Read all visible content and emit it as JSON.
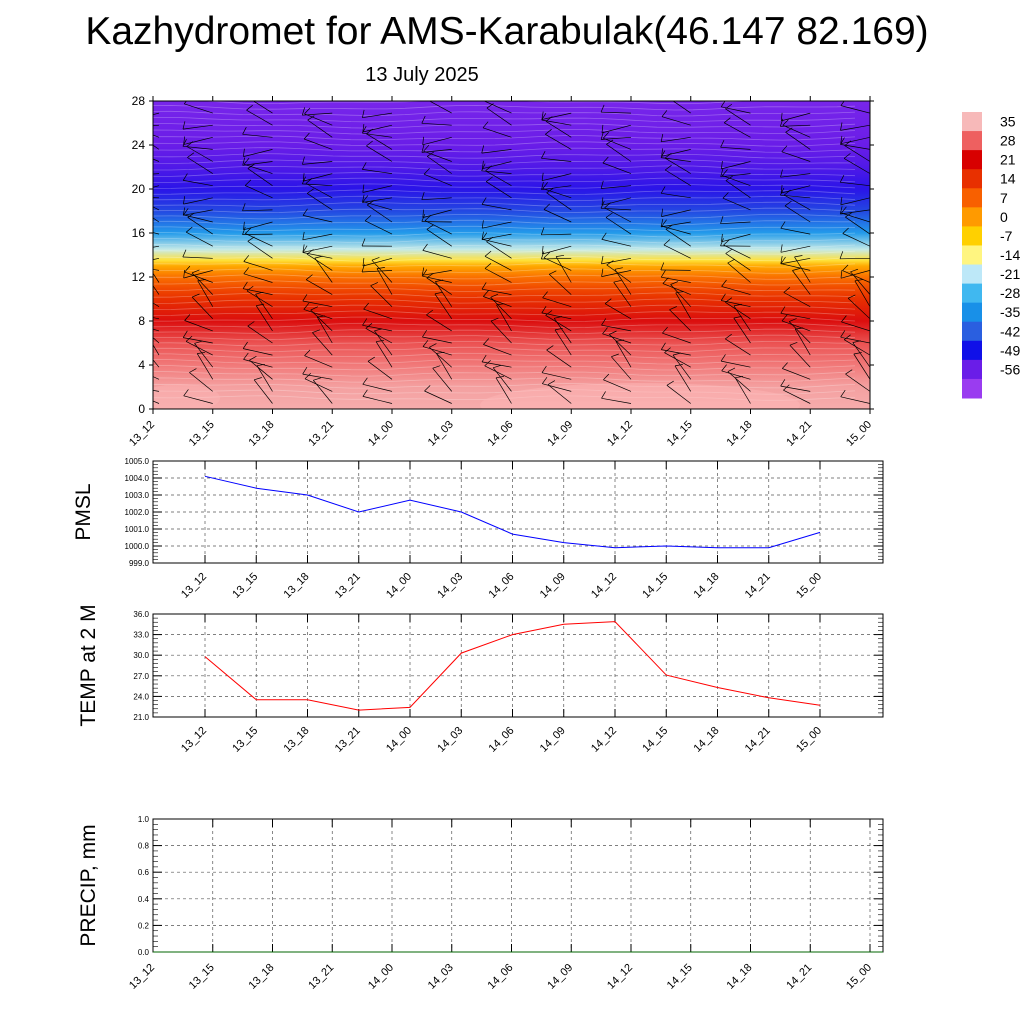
{
  "header": {
    "title": "Kazhydromet for AMS-Karabulak(46.147 82.169)",
    "subtitle": "13 July 2025"
  },
  "chart_data": [
    {
      "type": "heatmap",
      "panel": "cross-section",
      "x_ticks": [
        "13_12",
        "13_15",
        "13_18",
        "13_21",
        "14_00",
        "14_03",
        "14_06",
        "14_09",
        "14_12",
        "14_15",
        "14_18",
        "14_21",
        "15_00"
      ],
      "y_ticks": [
        0,
        4,
        8,
        12,
        16,
        20,
        24,
        28
      ],
      "ylim": [
        0,
        28
      ],
      "colorbar": {
        "labels": [
          35,
          28,
          21,
          14,
          7,
          0,
          -7,
          -14,
          -21,
          -28,
          -35,
          -42,
          -49,
          -56
        ],
        "colors": [
          "#f7b9b9",
          "#ee6060",
          "#d80000",
          "#e83000",
          "#f86000",
          "#ff9a00",
          "#ffd000",
          "#fff580",
          "#bde8f8",
          "#40b8f0",
          "#1890e8",
          "#2a5fe0",
          "#1010e8",
          "#6a1de8",
          "#9a3cf0"
        ]
      },
      "field": {
        "levels_y": [
          0,
          2,
          4,
          6,
          8,
          10,
          11,
          12,
          13,
          13.5,
          14.5,
          16,
          18,
          20,
          22,
          24,
          26,
          28
        ],
        "temp_c": [
          34,
          33,
          30,
          27,
          22,
          14,
          10,
          5,
          -2,
          -10,
          -20,
          -33,
          -44,
          -51,
          -54,
          -56,
          -57,
          -58
        ]
      },
      "wind_barbs": "present"
    },
    {
      "type": "line",
      "panel": "pmsl",
      "ylabel": "PMSL",
      "ylim": [
        999.0,
        1005.0
      ],
      "y_ticks": [
        "999.0",
        "1000.0",
        "1001.0",
        "1002.0",
        "1003.0",
        "1004.0",
        "1005.0"
      ],
      "x_ticks": [
        "13_12",
        "13_15",
        "13_18",
        "13_21",
        "14_00",
        "14_03",
        "14_06",
        "14_09",
        "14_12",
        "14_15",
        "14_18",
        "14_21",
        "15_00"
      ],
      "color": "#0000ff",
      "values": [
        1004.1,
        1003.4,
        1003.0,
        1002.0,
        1002.7,
        1002.0,
        1000.7,
        1000.2,
        999.9,
        1000.0,
        999.9,
        999.9,
        1000.8
      ]
    },
    {
      "type": "line",
      "panel": "t2m",
      "ylabel": "TEMP at 2 M",
      "ylim": [
        21.0,
        36.0
      ],
      "y_ticks": [
        "21.0",
        "24.0",
        "27.0",
        "30.0",
        "33.0",
        "36.0"
      ],
      "x_ticks": [
        "13_12",
        "13_15",
        "13_18",
        "13_21",
        "14_00",
        "14_03",
        "14_06",
        "14_09",
        "14_12",
        "14_15",
        "14_18",
        "14_21",
        "15_00"
      ],
      "color": "#ff0000",
      "values": [
        29.8,
        23.5,
        23.5,
        22.0,
        22.4,
        30.3,
        33.0,
        34.5,
        34.9,
        27.1,
        25.3,
        23.8,
        22.7
      ]
    },
    {
      "type": "line",
      "panel": "precip",
      "ylabel": "PRECIP, mm",
      "ylim": [
        0.0,
        1.0
      ],
      "y_ticks": [
        "0.0",
        "0.2",
        "0.4",
        "0.6",
        "0.8",
        "1.0"
      ],
      "x_ticks": [
        "13_12",
        "13_15",
        "13_18",
        "13_21",
        "14_00",
        "14_03",
        "14_06",
        "14_09",
        "14_12",
        "14_15",
        "14_18",
        "14_21",
        "15_00"
      ],
      "color": "#006400",
      "values": [
        0,
        0,
        0,
        0,
        0,
        0,
        0,
        0,
        0,
        0,
        0,
        0,
        0
      ]
    }
  ]
}
